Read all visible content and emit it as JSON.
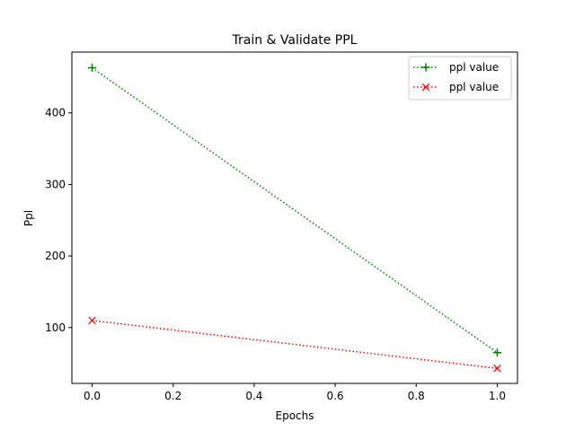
{
  "chart_data": {
    "type": "line",
    "title": "Train & Validate PPL",
    "xlabel": "Epochs",
    "ylabel": "Ppl",
    "xlim": [
      -0.05,
      1.05
    ],
    "ylim": [
      22,
      485
    ],
    "xticks": [
      0.0,
      0.2,
      0.4,
      0.6,
      0.8,
      1.0
    ],
    "xtick_labels": [
      "0.0",
      "0.2",
      "0.4",
      "0.6",
      "0.8",
      "1.0"
    ],
    "yticks": [
      100,
      200,
      300,
      400
    ],
    "ytick_labels": [
      "100",
      "200",
      "300",
      "400"
    ],
    "grid": false,
    "legend_position": "top-right",
    "series": [
      {
        "name": "ppl value",
        "color": "#008000",
        "marker": "plus",
        "linestyle": "dotted",
        "x": [
          0.0,
          1.0
        ],
        "y": [
          463,
          65
        ]
      },
      {
        "name": "ppl value",
        "color": "#ff0000",
        "marker": "x",
        "linestyle": "dotted",
        "x": [
          0.0,
          1.0
        ],
        "y": [
          110,
          43
        ]
      }
    ]
  }
}
